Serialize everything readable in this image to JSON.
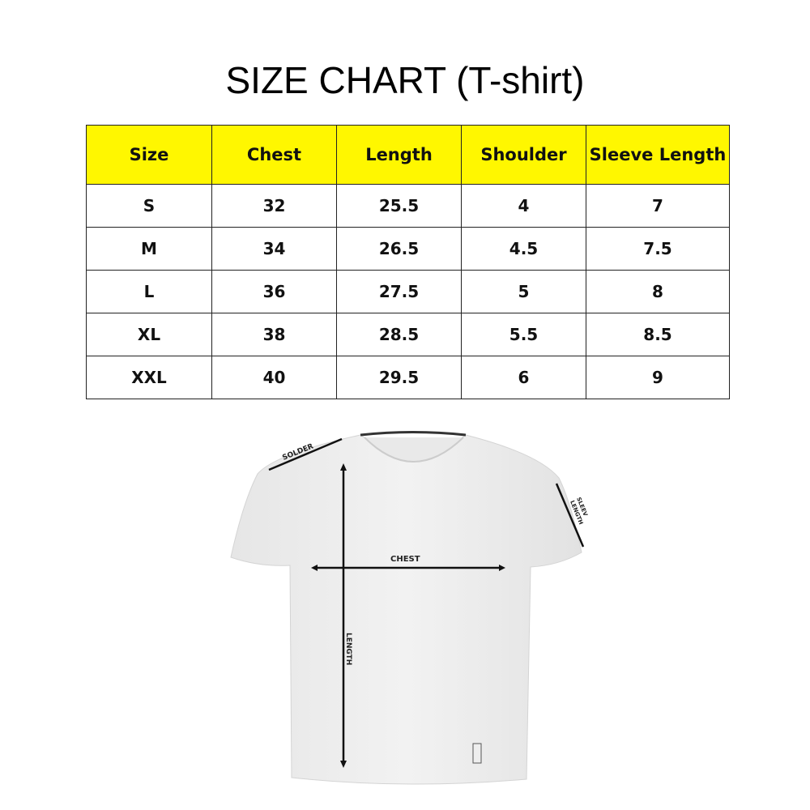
{
  "title": "SIZE CHART (T-shirt)",
  "table": {
    "headers": [
      "Size",
      "Chest",
      "Length",
      "Shoulder",
      "Sleeve Length"
    ],
    "rows": [
      [
        "S",
        "32",
        "25.5",
        "4",
        "7"
      ],
      [
        "M",
        "34",
        "26.5",
        "4.5",
        "7.5"
      ],
      [
        "L",
        "36",
        "27.5",
        "5",
        "8"
      ],
      [
        "XL",
        "38",
        "28.5",
        "5.5",
        "8.5"
      ],
      [
        "XXL",
        "40",
        "29.5",
        "6",
        "9"
      ]
    ],
    "header_color": "#fff700"
  },
  "diagram": {
    "shoulder_label": "SOLDER",
    "sleeve_label_line1": "SLEEV",
    "sleeve_label_line2": "LENGTH",
    "chest_label": "CHEST",
    "length_label": "LENGTH"
  }
}
